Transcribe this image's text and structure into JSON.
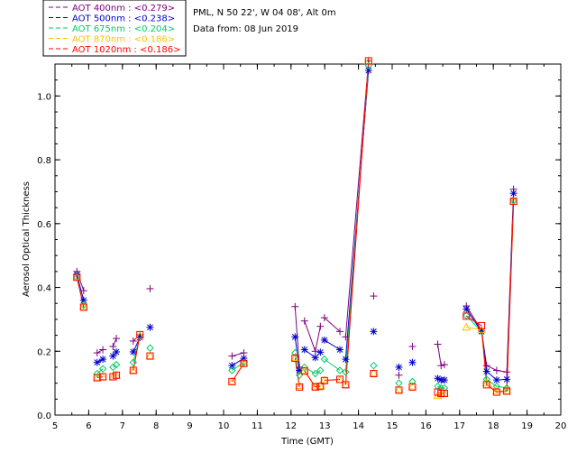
{
  "chart_data": {
    "type": "scatter",
    "title_lines": [
      "PML, N 50 22', W 04 08', Alt 0m",
      "Data from: 08 Jun 2019"
    ],
    "xlabel": "Time (GMT)",
    "ylabel": "Aerosol Optical Thickness",
    "xlim": [
      5,
      20
    ],
    "ylim": [
      0,
      1.1
    ],
    "xticks": [
      "5",
      "6",
      "7",
      "8",
      "9",
      "10",
      "11",
      "12",
      "13",
      "14",
      "15",
      "16",
      "17",
      "18",
      "19",
      "20"
    ],
    "yticks": [
      "0.0",
      "0.2",
      "0.4",
      "0.6",
      "0.8",
      "1.0"
    ],
    "legend_position": "top-left",
    "series": [
      {
        "name": "AOT  400nm : <0.279>",
        "color": "#800080",
        "marker": "plus",
        "points": [
          [
            5.65,
            0.45
          ],
          [
            5.85,
            0.39
          ],
          [
            6.25,
            0.195
          ],
          [
            6.42,
            0.205
          ],
          [
            6.72,
            0.215
          ],
          [
            6.82,
            0.24
          ],
          [
            7.32,
            0.232
          ],
          [
            7.52,
            0.252
          ],
          [
            7.82,
            0.396
          ],
          [
            10.25,
            0.185
          ],
          [
            10.6,
            0.195
          ],
          [
            12.12,
            0.34
          ],
          [
            12.25,
            0.15
          ],
          [
            12.4,
            0.295
          ],
          [
            12.72,
            0.2
          ],
          [
            12.87,
            0.278
          ],
          [
            12.99,
            0.305
          ],
          [
            13.45,
            0.262
          ],
          [
            13.62,
            0.245
          ],
          [
            14.3,
            1.11
          ],
          [
            14.45,
            0.373
          ],
          [
            15.2,
            0.125
          ],
          [
            15.6,
            0.215
          ],
          [
            16.35,
            0.222
          ],
          [
            16.45,
            0.155
          ],
          [
            16.55,
            0.158
          ],
          [
            17.2,
            0.342
          ],
          [
            17.65,
            0.265
          ],
          [
            17.8,
            0.155
          ],
          [
            18.1,
            0.14
          ],
          [
            18.4,
            0.135
          ],
          [
            18.6,
            0.708
          ]
        ],
        "segments": [
          [
            0,
            1
          ],
          [
            2,
            3
          ],
          [
            4,
            5
          ],
          [
            6,
            7
          ],
          [
            9,
            10
          ],
          [
            11,
            12
          ],
          [
            13,
            14
          ],
          [
            14,
            15
          ],
          [
            16,
            17
          ],
          [
            18,
            19
          ],
          [
            23,
            24
          ],
          [
            24,
            25
          ],
          [
            26,
            27
          ],
          [
            27,
            28
          ],
          [
            28,
            29
          ],
          [
            29,
            30
          ],
          [
            30,
            31
          ]
        ]
      },
      {
        "name": "AOT  500nm : <0.238>",
        "color": "#0000cd",
        "marker": "star",
        "points": [
          [
            5.65,
            0.44
          ],
          [
            5.85,
            0.36
          ],
          [
            6.25,
            0.165
          ],
          [
            6.42,
            0.175
          ],
          [
            6.72,
            0.185
          ],
          [
            6.82,
            0.198
          ],
          [
            7.32,
            0.198
          ],
          [
            7.52,
            0.243
          ],
          [
            7.82,
            0.275
          ],
          [
            10.25,
            0.155
          ],
          [
            10.6,
            0.178
          ],
          [
            12.12,
            0.245
          ],
          [
            12.25,
            0.14
          ],
          [
            12.4,
            0.205
          ],
          [
            12.72,
            0.18
          ],
          [
            12.87,
            0.197
          ],
          [
            12.99,
            0.235
          ],
          [
            13.45,
            0.205
          ],
          [
            13.62,
            0.175
          ],
          [
            14.3,
            1.08
          ],
          [
            14.45,
            0.262
          ],
          [
            15.2,
            0.15
          ],
          [
            15.6,
            0.165
          ],
          [
            16.35,
            0.115
          ],
          [
            16.45,
            0.11
          ],
          [
            16.55,
            0.11
          ],
          [
            17.2,
            0.332
          ],
          [
            17.65,
            0.262
          ],
          [
            17.8,
            0.137
          ],
          [
            18.1,
            0.11
          ],
          [
            18.4,
            0.112
          ],
          [
            18.6,
            0.695
          ]
        ],
        "segments": [
          [
            0,
            1
          ],
          [
            2,
            3
          ],
          [
            4,
            5
          ],
          [
            6,
            7
          ],
          [
            9,
            10
          ],
          [
            11,
            12
          ],
          [
            13,
            14
          ],
          [
            14,
            15
          ],
          [
            16,
            17
          ],
          [
            18,
            19
          ],
          [
            23,
            24
          ],
          [
            24,
            25
          ],
          [
            26,
            27
          ],
          [
            27,
            28
          ],
          [
            28,
            29
          ],
          [
            29,
            30
          ],
          [
            30,
            31
          ]
        ]
      },
      {
        "name": "AOT  675nm : <0.204>",
        "color": "#00cc66",
        "marker": "diamond",
        "points": [
          [
            5.65,
            0.432
          ],
          [
            5.85,
            0.345
          ],
          [
            6.25,
            0.13
          ],
          [
            6.42,
            0.145
          ],
          [
            6.72,
            0.15
          ],
          [
            6.82,
            0.158
          ],
          [
            7.32,
            0.165
          ],
          [
            7.52,
            0.247
          ],
          [
            7.82,
            0.21
          ],
          [
            10.25,
            0.14
          ],
          [
            10.6,
            0.165
          ],
          [
            12.12,
            0.195
          ],
          [
            12.25,
            0.125
          ],
          [
            12.4,
            0.15
          ],
          [
            12.72,
            0.13
          ],
          [
            12.87,
            0.14
          ],
          [
            12.99,
            0.175
          ],
          [
            13.45,
            0.14
          ],
          [
            13.62,
            0.135
          ],
          [
            14.3,
            1.095
          ],
          [
            14.45,
            0.155
          ],
          [
            15.2,
            0.1
          ],
          [
            15.6,
            0.105
          ],
          [
            16.35,
            0.09
          ],
          [
            16.45,
            0.085
          ],
          [
            16.55,
            0.085
          ],
          [
            17.2,
            0.312
          ],
          [
            17.65,
            0.262
          ],
          [
            17.8,
            0.112
          ],
          [
            18.1,
            0.09
          ],
          [
            18.4,
            0.085
          ],
          [
            18.6,
            0.672
          ]
        ],
        "segments": [
          [
            0,
            1
          ],
          [
            2,
            3
          ],
          [
            4,
            5
          ],
          [
            6,
            7
          ],
          [
            9,
            10
          ],
          [
            11,
            12
          ],
          [
            13,
            14
          ],
          [
            14,
            15
          ],
          [
            16,
            17
          ],
          [
            18,
            19
          ],
          [
            23,
            24
          ],
          [
            24,
            25
          ],
          [
            26,
            27
          ],
          [
            27,
            28
          ],
          [
            28,
            29
          ],
          [
            29,
            30
          ],
          [
            30,
            31
          ]
        ]
      },
      {
        "name": "AOT  870nm : <0.186>",
        "color": "#ffbf00",
        "marker": "triangle",
        "points": [
          [
            5.65,
            0.432
          ],
          [
            5.85,
            0.34
          ],
          [
            6.25,
            0.118
          ],
          [
            6.42,
            0.12
          ],
          [
            6.72,
            0.12
          ],
          [
            6.82,
            0.125
          ],
          [
            7.32,
            0.14
          ],
          [
            7.52,
            0.25
          ],
          [
            7.82,
            0.185
          ],
          [
            10.25,
            0.105
          ],
          [
            10.6,
            0.162
          ],
          [
            12.12,
            0.18
          ],
          [
            12.25,
            0.092
          ],
          [
            12.4,
            0.14
          ],
          [
            12.72,
            0.09
          ],
          [
            12.87,
            0.092
          ],
          [
            12.99,
            0.11
          ],
          [
            13.45,
            0.11
          ],
          [
            13.62,
            0.095
          ],
          [
            14.3,
            1.11
          ],
          [
            14.45,
            0.132
          ],
          [
            15.2,
            0.08
          ],
          [
            15.6,
            0.09
          ],
          [
            16.35,
            0.06
          ],
          [
            16.45,
            0.065
          ],
          [
            16.55,
            0.068
          ],
          [
            17.2,
            0.275
          ],
          [
            17.65,
            0.268
          ],
          [
            17.8,
            0.1
          ],
          [
            18.1,
            0.075
          ],
          [
            18.4,
            0.076
          ],
          [
            18.6,
            0.67
          ]
        ],
        "segments": [
          [
            0,
            1
          ],
          [
            2,
            3
          ],
          [
            4,
            5
          ],
          [
            6,
            7
          ],
          [
            9,
            10
          ],
          [
            11,
            12
          ],
          [
            13,
            14
          ],
          [
            14,
            15
          ],
          [
            16,
            17
          ],
          [
            18,
            19
          ],
          [
            23,
            24
          ],
          [
            24,
            25
          ],
          [
            26,
            27
          ],
          [
            27,
            28
          ],
          [
            28,
            29
          ],
          [
            29,
            30
          ],
          [
            30,
            31
          ]
        ]
      },
      {
        "name": "AOT 1020nm : <0.186>",
        "color": "#ff0000",
        "marker": "square",
        "points": [
          [
            5.65,
            0.432
          ],
          [
            5.85,
            0.338
          ],
          [
            6.25,
            0.117
          ],
          [
            6.42,
            0.12
          ],
          [
            6.72,
            0.12
          ],
          [
            6.82,
            0.125
          ],
          [
            7.32,
            0.14
          ],
          [
            7.52,
            0.252
          ],
          [
            7.82,
            0.185
          ],
          [
            10.25,
            0.105
          ],
          [
            10.6,
            0.162
          ],
          [
            12.12,
            0.178
          ],
          [
            12.25,
            0.088
          ],
          [
            12.4,
            0.138
          ],
          [
            12.72,
            0.088
          ],
          [
            12.87,
            0.09
          ],
          [
            12.99,
            0.108
          ],
          [
            13.45,
            0.112
          ],
          [
            13.62,
            0.095
          ],
          [
            14.3,
            1.11
          ],
          [
            14.45,
            0.13
          ],
          [
            15.2,
            0.078
          ],
          [
            15.6,
            0.088
          ],
          [
            16.35,
            0.072
          ],
          [
            16.45,
            0.068
          ],
          [
            16.55,
            0.068
          ],
          [
            17.2,
            0.31
          ],
          [
            17.65,
            0.28
          ],
          [
            17.8,
            0.095
          ],
          [
            18.1,
            0.072
          ],
          [
            18.4,
            0.075
          ],
          [
            18.6,
            0.67
          ]
        ],
        "segments": [
          [
            0,
            1
          ],
          [
            2,
            3
          ],
          [
            4,
            5
          ],
          [
            6,
            7
          ],
          [
            9,
            10
          ],
          [
            11,
            12
          ],
          [
            13,
            14
          ],
          [
            14,
            15
          ],
          [
            16,
            17
          ],
          [
            18,
            19
          ],
          [
            23,
            24
          ],
          [
            24,
            25
          ],
          [
            26,
            27
          ],
          [
            27,
            28
          ],
          [
            28,
            29
          ],
          [
            29,
            30
          ],
          [
            30,
            31
          ]
        ]
      }
    ]
  }
}
